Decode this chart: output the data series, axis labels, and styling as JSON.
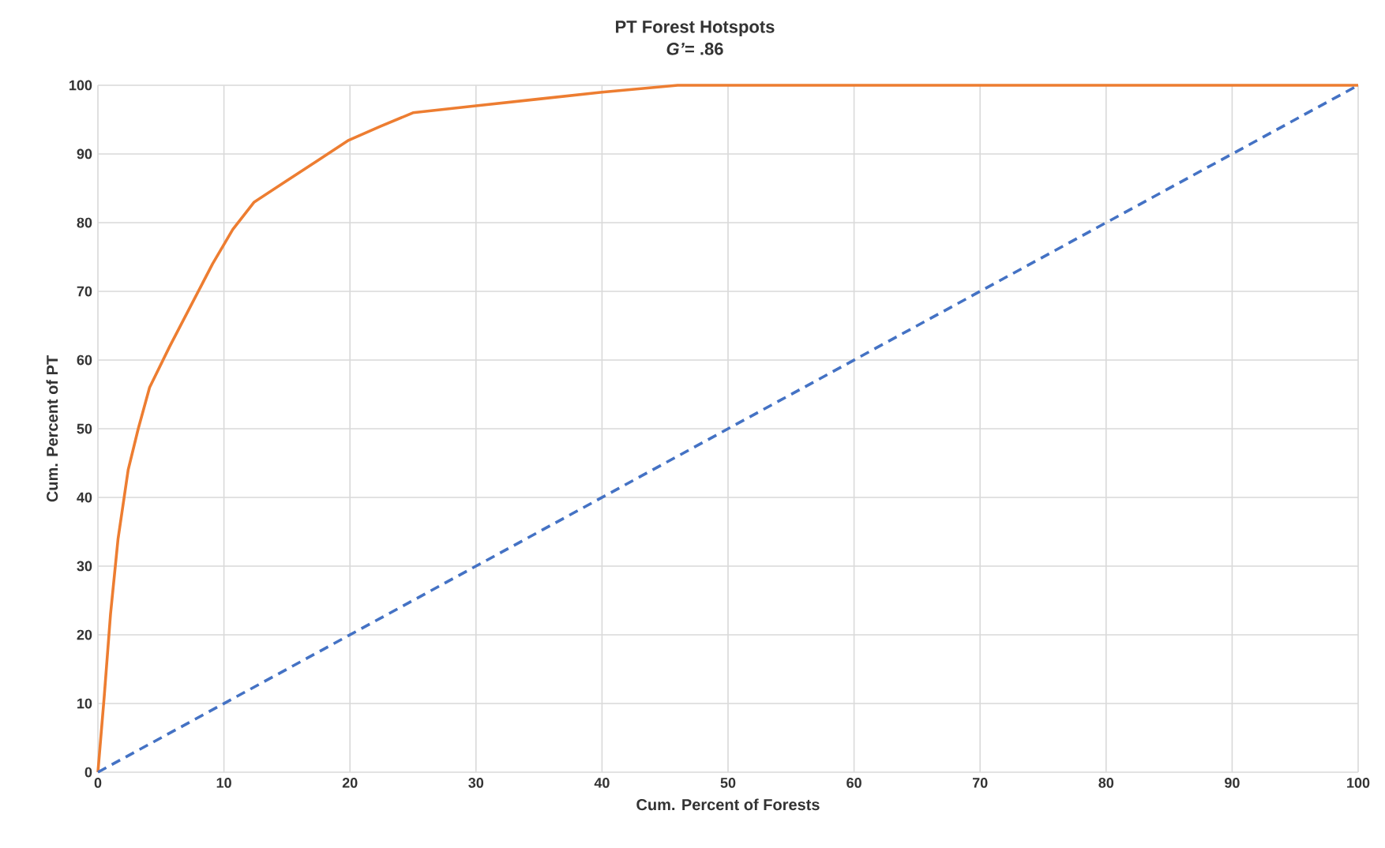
{
  "chart_data": {
    "type": "line",
    "title": "PT Forest Hotspots",
    "subtitle": "*G’*= .86",
    "xlabel": "Cum. Percent of Forests",
    "ylabel": "Cum. Percent of PT",
    "series": [
      {
        "color": "#ed7d31",
        "line_style": "solid",
        "x": [
          0,
          0.5,
          1,
          1.6,
          2.4,
          3.2,
          4.1,
          5.7,
          7.4,
          9.1,
          10.7,
          12.4,
          14.9,
          17.4,
          19.9,
          22.4,
          25,
          30,
          35,
          40,
          46,
          50,
          60,
          70,
          80,
          90,
          100
        ],
        "values": [
          0,
          11,
          23,
          34,
          44,
          50,
          56,
          62,
          68,
          74,
          79,
          83,
          86,
          89,
          92,
          94,
          96,
          97,
          98,
          99,
          100,
          100,
          100,
          100,
          100,
          100,
          100
        ]
      },
      {
        "color": "#4472c4",
        "line_style": "dashed",
        "x": [
          0,
          100
        ],
        "values": [
          0,
          100
        ]
      }
    ],
    "xlim": [
      0,
      100
    ],
    "ylim": [
      0,
      100
    ],
    "xticks": [
      0,
      10,
      20,
      30,
      40,
      50,
      60,
      70,
      80,
      90,
      100
    ],
    "yticks": [
      0,
      10,
      20,
      30,
      40,
      50,
      60,
      70,
      80,
      90,
      100
    ],
    "grid": true,
    "marker": "none"
  }
}
